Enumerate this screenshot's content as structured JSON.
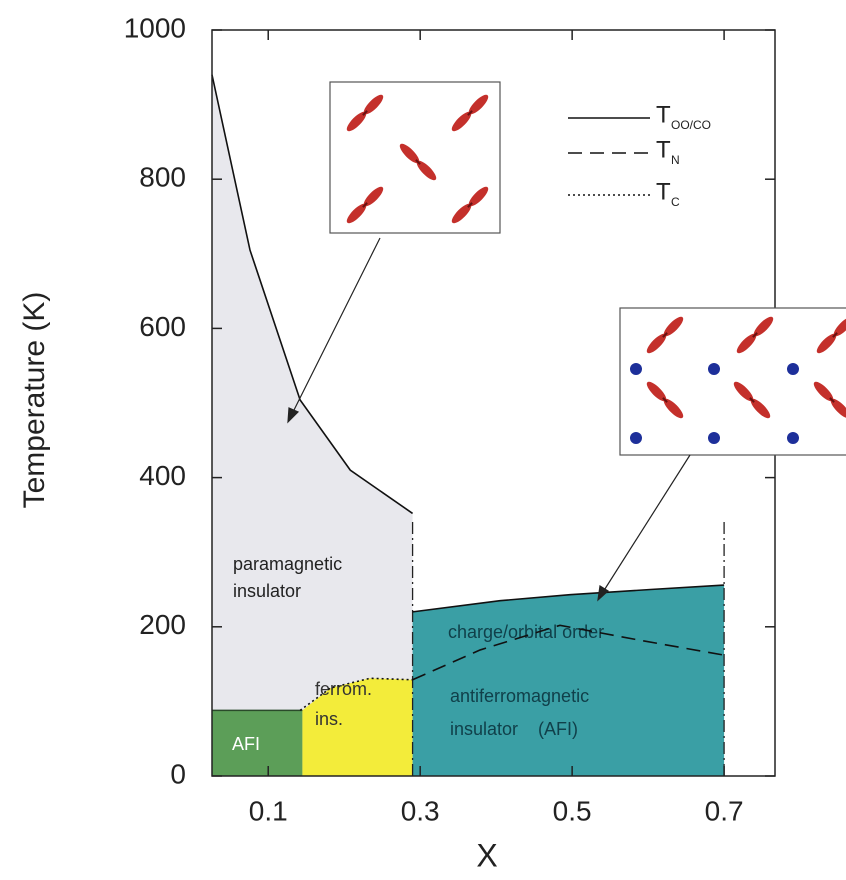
{
  "chart_data": {
    "type": "phase-diagram",
    "x_label": "X",
    "y_label": "Temperature (K)",
    "xlim": [
      0.026,
      0.767
    ],
    "ylim": [
      0,
      1000
    ],
    "xticks": [
      0.1,
      0.3,
      0.5,
      0.7
    ],
    "yticks": [
      0,
      200,
      400,
      600,
      800,
      1000
    ],
    "legend": "top-right",
    "regions": [
      {
        "label": [
          "paramagnetic",
          "insulator"
        ],
        "color": "#e8e8ed",
        "x": [
          0.026,
          0.076,
          0.142,
          0.208,
          0.29
        ],
        "top": [
          940,
          705,
          504,
          410,
          352
        ]
      },
      {
        "label": [
          "AFI"
        ],
        "color": "#5c9e58",
        "x": [
          0.026,
          0.145
        ],
        "top": [
          88,
          88
        ]
      },
      {
        "label": [
          "ferrom.",
          "ins."
        ],
        "color": "#f3ec3a",
        "x": [
          0.145,
          0.182,
          0.234,
          0.29
        ],
        "top": [
          88,
          118,
          131,
          129
        ]
      },
      {
        "label": [
          "charge/orbital order",
          "antiferromagnetic",
          "insulator    (AFI)"
        ],
        "color": "#3a9fa5",
        "x": [
          0.29,
          0.405,
          0.497,
          0.603,
          0.7
        ],
        "top": [
          220,
          235,
          243,
          250,
          256
        ]
      }
    ],
    "series": [
      {
        "name": "T",
        "subscript": "OO/CO",
        "style": "solid",
        "color": "#111111",
        "x": [
          0.026,
          0.076,
          0.142,
          0.208,
          0.29,
          0.29,
          0.29,
          0.405,
          0.497,
          0.603,
          0.7
        ],
        "values": [
          940,
          705,
          504,
          410,
          352,
          null,
          220,
          235,
          243,
          250,
          256
        ]
      },
      {
        "name": "T",
        "subscript": "N",
        "style": "dashed",
        "color": "#111111",
        "x": [
          0.29,
          0.379,
          0.484,
          0.589,
          0.7
        ],
        "values": [
          129,
          169,
          202,
          182,
          162
        ]
      },
      {
        "name": "T",
        "subscript": "C",
        "style": "dotted",
        "color": "#111111",
        "x": [
          0.142,
          0.182,
          0.234,
          0.29
        ],
        "values": [
          88,
          118,
          131,
          129
        ]
      }
    ]
  }
}
